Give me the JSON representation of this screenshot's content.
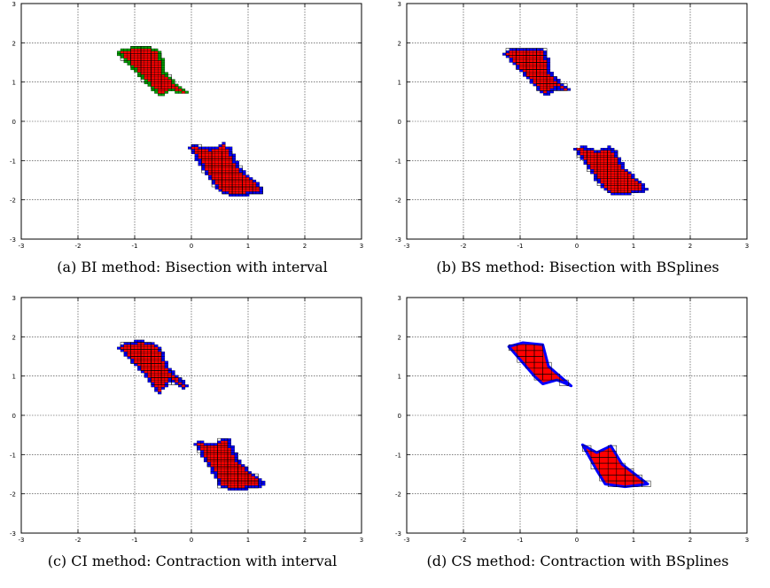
{
  "colors": {
    "fill": "#ff0000",
    "boundary": "#0000ff",
    "undecided": "#00a000",
    "grid": "#000000"
  },
  "chart_data": [
    {
      "type": "scatter",
      "caption_prefix": "(a)",
      "caption": "BI method: Bisection with interval",
      "xlim": [
        -3,
        3
      ],
      "ylim": [
        -3,
        3
      ],
      "xticks": [
        "-3",
        "-2",
        "-1",
        "0",
        "1",
        "2",
        "3"
      ],
      "yticks": [
        "-3",
        "-2",
        "-1",
        "0",
        "1",
        "2",
        "3"
      ],
      "grid": true,
      "style": "boxes",
      "regions": [
        [
          [
            -1.25,
            1.75
          ],
          [
            -0.9,
            1.88
          ],
          [
            -0.6,
            1.78
          ],
          [
            -0.5,
            1.2
          ],
          [
            -0.15,
            0.75
          ],
          [
            0.0,
            0.65
          ],
          [
            -0.35,
            0.85
          ],
          [
            -0.55,
            0.7
          ],
          [
            -0.75,
            1.0
          ]
        ],
        [
          [
            0.0,
            -0.65
          ],
          [
            0.35,
            -0.75
          ],
          [
            0.6,
            -0.6
          ],
          [
            0.8,
            -1.2
          ],
          [
            1.25,
            -1.75
          ],
          [
            0.85,
            -1.85
          ],
          [
            0.55,
            -1.8
          ],
          [
            0.4,
            -1.5
          ]
        ]
      ]
    },
    {
      "type": "scatter",
      "caption_prefix": "(b)",
      "caption": "BS method: Bisection with BSplines",
      "xlim": [
        -3,
        3
      ],
      "ylim": [
        -3,
        3
      ],
      "xticks": [
        "-3",
        "-2",
        "-1",
        "0",
        "1",
        "2",
        "3"
      ],
      "yticks": [
        "-3",
        "-2",
        "-1",
        "0",
        "1",
        "2",
        "3"
      ],
      "grid": true,
      "style": "boxes",
      "regions": [
        [
          [
            -1.25,
            1.75
          ],
          [
            -0.95,
            1.82
          ],
          [
            -0.6,
            1.8
          ],
          [
            -0.5,
            1.2
          ],
          [
            -0.15,
            0.75
          ],
          [
            0.0,
            0.6
          ],
          [
            -0.35,
            0.9
          ],
          [
            -0.55,
            0.7
          ],
          [
            -0.75,
            1.0
          ]
        ],
        [
          [
            0.0,
            -0.65
          ],
          [
            0.35,
            -0.8
          ],
          [
            0.6,
            -0.7
          ],
          [
            0.8,
            -1.2
          ],
          [
            1.2,
            -1.72
          ],
          [
            0.85,
            -1.82
          ],
          [
            0.55,
            -1.78
          ],
          [
            0.4,
            -1.5
          ]
        ]
      ]
    },
    {
      "type": "scatter",
      "caption_prefix": "(c)",
      "caption": "CI method: Contraction with interval",
      "xlim": [
        -3,
        3
      ],
      "ylim": [
        -3,
        3
      ],
      "xticks": [
        "-3",
        "-2",
        "-1",
        "0",
        "1",
        "2",
        "3"
      ],
      "yticks": [
        "-3",
        "-2",
        "-1",
        "0",
        "1",
        "2",
        "3"
      ],
      "grid": true,
      "style": "boxes",
      "regions": [
        [
          [
            -1.25,
            1.75
          ],
          [
            -0.9,
            1.85
          ],
          [
            -0.6,
            1.75
          ],
          [
            -0.45,
            1.2
          ],
          [
            -0.15,
            0.8
          ],
          [
            -0.1,
            0.7
          ],
          [
            -0.4,
            0.95
          ],
          [
            -0.55,
            0.6
          ],
          [
            -0.75,
            1.0
          ]
        ],
        [
          [
            0.1,
            -0.7
          ],
          [
            0.4,
            -0.8
          ],
          [
            0.6,
            -0.6
          ],
          [
            0.8,
            -1.2
          ],
          [
            1.25,
            -1.75
          ],
          [
            0.85,
            -1.85
          ],
          [
            0.55,
            -1.8
          ],
          [
            0.45,
            -1.5
          ]
        ]
      ]
    },
    {
      "type": "scatter",
      "caption_prefix": "(d)",
      "caption": "CS method: Contraction with BSplines",
      "xlim": [
        -3,
        3
      ],
      "ylim": [
        -3,
        3
      ],
      "xticks": [
        "-3",
        "-2",
        "-1",
        "0",
        "1",
        "2",
        "3"
      ],
      "yticks": [
        "-3",
        "-2",
        "-1",
        "0",
        "1",
        "2",
        "3"
      ],
      "grid": true,
      "style": "smooth",
      "regions": [
        [
          [
            -1.2,
            1.75
          ],
          [
            -0.95,
            1.85
          ],
          [
            -0.6,
            1.8
          ],
          [
            -0.5,
            1.25
          ],
          [
            -0.1,
            0.75
          ],
          [
            -0.35,
            0.9
          ],
          [
            -0.6,
            0.8
          ],
          [
            -0.75,
            1.0
          ]
        ],
        [
          [
            0.1,
            -0.75
          ],
          [
            0.35,
            -0.95
          ],
          [
            0.6,
            -0.78
          ],
          [
            0.8,
            -1.25
          ],
          [
            1.25,
            -1.75
          ],
          [
            0.85,
            -1.82
          ],
          [
            0.5,
            -1.75
          ],
          [
            0.35,
            -1.4
          ]
        ]
      ]
    }
  ]
}
